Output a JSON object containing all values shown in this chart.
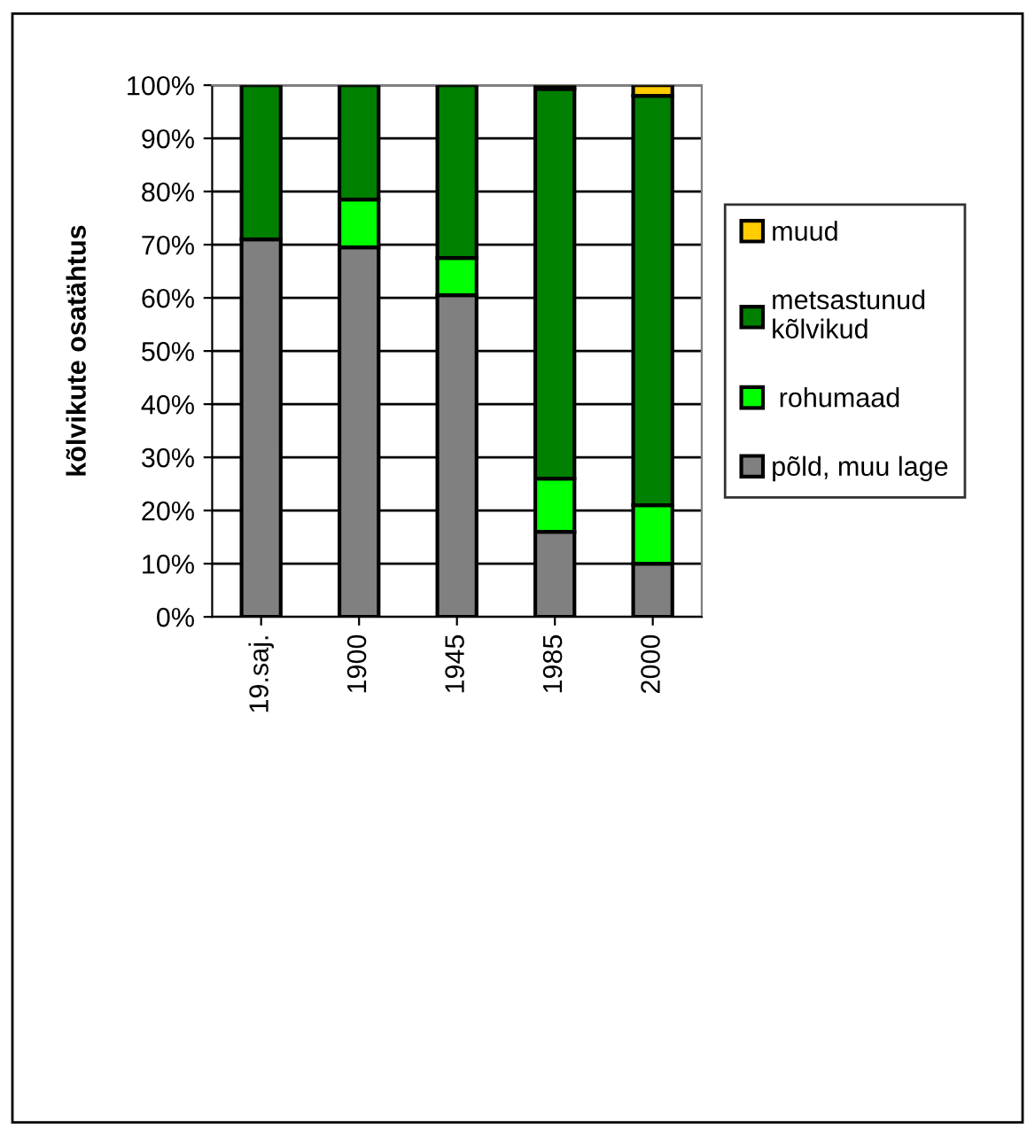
{
  "chart_data": {
    "type": "bar",
    "stacked": true,
    "ylabel": "kõlvikute osatähtus",
    "categories": [
      "19.saj.",
      "1900",
      "1945",
      "1985",
      "2000"
    ],
    "series": [
      {
        "name": "põld, muu lage",
        "color": "#808080",
        "values": [
          71,
          69.5,
          60.5,
          16,
          10
        ]
      },
      {
        "name": " rohumaad",
        "color": "#00ff00",
        "values": [
          null,
          9,
          7,
          10,
          11
        ]
      },
      {
        "name": "metsastunud\nkõlvikud",
        "color": "#008000",
        "values": [
          29,
          21.5,
          32.5,
          73.3,
          77
        ]
      },
      {
        "name": "muud",
        "color": "#ffcc00",
        "values": [
          null,
          null,
          null,
          0.7,
          2
        ]
      }
    ],
    "ylim": [
      0,
      100
    ],
    "yticks": [
      {
        "value": 0,
        "label": "0%"
      },
      {
        "value": 10,
        "label": "10%"
      },
      {
        "value": 20,
        "label": "20%"
      },
      {
        "value": 30,
        "label": "30%"
      },
      {
        "value": 40,
        "label": "40%"
      },
      {
        "value": 50,
        "label": "50%"
      },
      {
        "value": 60,
        "label": "60%"
      },
      {
        "value": 70,
        "label": "70%"
      },
      {
        "value": 80,
        "label": "80%"
      },
      {
        "value": 90,
        "label": "90%"
      },
      {
        "value": 100,
        "label": "100%"
      }
    ],
    "grid": "y",
    "legend": "right"
  }
}
